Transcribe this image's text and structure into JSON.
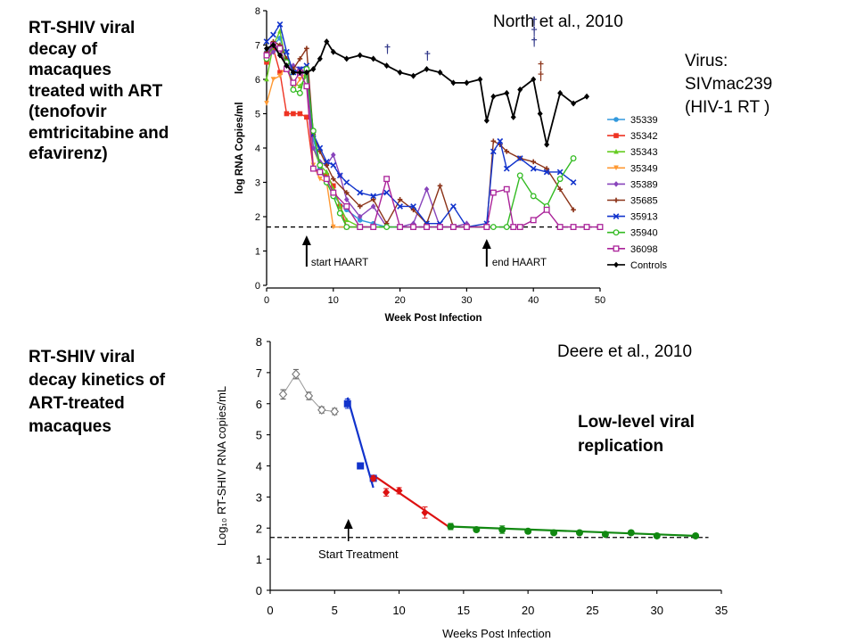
{
  "slide": {
    "caption1": [
      "RT-SHIV viral",
      "decay of",
      "macaques",
      "treated with ART",
      "(tenofovir",
      "emtricitabine and",
      "efavirenz)"
    ],
    "caption2": [
      "RT-SHIV viral",
      "decay kinetics of",
      "ART-treated",
      "macaques"
    ],
    "citation1": "North et al., 2010",
    "citation2": "Deere et al., 2010",
    "virus_note": [
      "Virus:",
      "SIVmac239",
      "(HIV-1 RT )"
    ],
    "low_level_note": [
      "Low-level viral",
      "replication"
    ]
  },
  "chart_data": [
    {
      "type": "line",
      "xlabel": "Week Post Infection",
      "ylabel": "log RNA Copies/ml",
      "xlim": [
        0,
        50
      ],
      "ylim": [
        0,
        8
      ],
      "xticks": [
        0,
        10,
        20,
        30,
        40,
        50
      ],
      "yticks": [
        0,
        1,
        2,
        3,
        4,
        5,
        6,
        7,
        8
      ],
      "limit_of_detection": 1.7,
      "annotations": [
        {
          "text": "start HAART",
          "x": 6
        },
        {
          "text": "end HAART",
          "x": 33
        }
      ],
      "death_marker": "†",
      "death_markers": [
        {
          "x": 18,
          "y": 6.9
        },
        {
          "x": 24,
          "y": 6.7
        },
        {
          "x": 40,
          "y": 7.7
        },
        {
          "x": 40,
          "y": 7.4
        },
        {
          "x": 40,
          "y": 7.1
        },
        {
          "x": 41,
          "y": 6.4
        },
        {
          "x": 41,
          "y": 6.1
        }
      ],
      "legend_position": "right",
      "series": [
        {
          "name": "35339",
          "color": "#3399dd",
          "marker": "circle",
          "x": [
            0,
            1,
            2,
            3,
            4,
            5,
            6,
            7,
            8,
            9,
            10,
            12,
            14,
            16,
            18,
            20,
            22,
            24,
            26,
            28
          ],
          "y": [
            6.8,
            7.0,
            7.2,
            6.6,
            6.2,
            6.3,
            6.1,
            4.3,
            3.4,
            3.0,
            2.6,
            2.2,
            1.9,
            1.8,
            1.7,
            1.7,
            1.7,
            1.7,
            1.7,
            1.7
          ]
        },
        {
          "name": "35342",
          "color": "#ee3322",
          "marker": "square",
          "x": [
            0,
            1,
            2,
            3,
            4,
            5,
            6,
            7,
            8,
            9,
            10,
            11,
            12,
            14,
            16
          ],
          "y": [
            6.5,
            6.9,
            6.2,
            5.0,
            5.0,
            5.0,
            4.9,
            3.4,
            3.3,
            3.2,
            2.9,
            2.3,
            1.7,
            1.7,
            1.7
          ]
        },
        {
          "name": "35343",
          "color": "#66cc22",
          "marker": "triangle",
          "x": [
            0,
            1,
            2,
            3,
            4,
            5,
            6,
            7,
            8,
            9,
            10,
            11,
            12,
            14,
            16,
            18
          ],
          "y": [
            6.0,
            7.0,
            7.4,
            6.4,
            5.9,
            5.8,
            6.1,
            4.0,
            3.5,
            3.3,
            2.8,
            2.3,
            1.9,
            1.7,
            1.7,
            1.7
          ]
        },
        {
          "name": "35349",
          "color": "#ff9933",
          "marker": "triangle-down",
          "x": [
            0,
            1,
            2,
            3,
            4,
            5,
            6,
            7,
            8,
            9,
            10,
            12,
            14
          ],
          "y": [
            5.3,
            6.0,
            6.1,
            6.4,
            5.7,
            6.0,
            6.2,
            3.5,
            3.1,
            3.0,
            1.7,
            1.7,
            1.7
          ]
        },
        {
          "name": "35389",
          "color": "#8844bb",
          "marker": "diamond",
          "x": [
            0,
            1,
            2,
            3,
            4,
            5,
            6,
            7,
            8,
            9,
            10,
            11,
            12,
            14,
            16,
            18,
            20,
            22,
            24,
            26,
            28,
            30
          ],
          "y": [
            6.6,
            6.8,
            6.9,
            6.3,
            6.4,
            6.3,
            6.2,
            4.0,
            3.6,
            3.5,
            3.8,
            3.2,
            2.5,
            2.0,
            2.3,
            1.7,
            1.7,
            1.8,
            2.8,
            1.7,
            1.7,
            1.8
          ]
        },
        {
          "name": "35685",
          "color": "#8b3318",
          "marker": "plus",
          "x": [
            0,
            1,
            2,
            3,
            4,
            5,
            6,
            7,
            8,
            9,
            10,
            12,
            14,
            16,
            18,
            20,
            22,
            24,
            26,
            28,
            30,
            33,
            34,
            35,
            36,
            38,
            40,
            42,
            44,
            46
          ],
          "y": [
            6.8,
            7.1,
            7.0,
            6.6,
            6.3,
            6.6,
            6.9,
            4.4,
            3.9,
            3.5,
            3.1,
            2.7,
            2.3,
            2.5,
            1.8,
            2.5,
            2.2,
            1.8,
            2.9,
            1.7,
            1.7,
            1.7,
            4.2,
            4.1,
            3.9,
            3.7,
            3.6,
            3.4,
            2.8,
            2.2
          ]
        },
        {
          "name": "35913",
          "color": "#1133cc",
          "marker": "x",
          "x": [
            0,
            1,
            2,
            3,
            4,
            5,
            6,
            7,
            8,
            9,
            10,
            11,
            12,
            14,
            16,
            18,
            20,
            22,
            24,
            26,
            28,
            30,
            33,
            34,
            35,
            36,
            38,
            40,
            42,
            44,
            46
          ],
          "y": [
            7.1,
            7.3,
            7.6,
            6.8,
            6.2,
            6.3,
            6.4,
            4.4,
            4.0,
            3.6,
            3.5,
            3.2,
            3.0,
            2.7,
            2.6,
            2.7,
            2.3,
            2.3,
            1.8,
            1.8,
            2.3,
            1.7,
            1.8,
            3.9,
            4.2,
            3.4,
            3.7,
            3.4,
            3.3,
            3.3,
            3.0
          ]
        },
        {
          "name": "35940",
          "color": "#33bb22",
          "marker": "circle-open",
          "x": [
            0,
            1,
            2,
            3,
            4,
            5,
            6,
            7,
            8,
            9,
            10,
            11,
            12,
            14,
            16,
            18,
            20,
            22,
            24,
            26,
            28,
            30,
            33,
            34,
            36,
            38,
            40,
            42,
            44,
            46
          ],
          "y": [
            6.6,
            7.0,
            6.8,
            6.5,
            5.7,
            5.6,
            6.3,
            4.5,
            3.5,
            3.0,
            2.6,
            2.1,
            1.7,
            1.7,
            1.7,
            1.7,
            1.7,
            1.7,
            1.7,
            1.7,
            1.7,
            1.7,
            1.7,
            1.7,
            1.7,
            3.2,
            2.6,
            2.3,
            3.1,
            3.7
          ]
        },
        {
          "name": "36098",
          "color": "#aa2299",
          "marker": "square-open",
          "x": [
            0,
            1,
            2,
            3,
            4,
            5,
            6,
            7,
            8,
            9,
            10,
            12,
            14,
            16,
            18,
            20,
            22,
            24,
            26,
            28,
            30,
            33,
            34,
            36,
            37,
            38,
            40,
            42,
            44,
            46,
            48,
            50
          ],
          "y": [
            6.7,
            7.0,
            6.9,
            6.3,
            5.9,
            6.2,
            5.8,
            3.4,
            3.3,
            3.1,
            2.7,
            2.3,
            1.7,
            1.7,
            3.1,
            1.7,
            1.7,
            1.7,
            1.7,
            1.7,
            1.7,
            1.7,
            2.7,
            2.8,
            1.7,
            1.7,
            1.9,
            2.2,
            1.7,
            1.7,
            1.7,
            1.7
          ]
        },
        {
          "name": "Controls",
          "color": "#000000",
          "marker": "diamond",
          "x": [
            0,
            1,
            2,
            3,
            4,
            5,
            6,
            7,
            8,
            9,
            10,
            12,
            14,
            16,
            18,
            20,
            22,
            24,
            26,
            28,
            30,
            32,
            33,
            34,
            36,
            37,
            38,
            40,
            41,
            42,
            44,
            46,
            48
          ],
          "y": [
            6.9,
            7.0,
            6.7,
            6.4,
            6.2,
            6.2,
            6.2,
            6.3,
            6.6,
            7.1,
            6.8,
            6.6,
            6.7,
            6.6,
            6.4,
            6.2,
            6.1,
            6.3,
            6.2,
            5.9,
            5.9,
            6.0,
            4.8,
            5.5,
            5.6,
            4.9,
            5.7,
            6.0,
            5.0,
            4.1,
            5.6,
            5.3,
            5.5
          ]
        }
      ]
    },
    {
      "type": "line",
      "xlabel": "Weeks Post Infection",
      "ylabel": "Log₁₀ RT-SHIV RNA copies/mL",
      "xlim": [
        0,
        35
      ],
      "ylim": [
        0,
        8
      ],
      "xticks": [
        0,
        5,
        10,
        15,
        20,
        25,
        30,
        35
      ],
      "yticks": [
        0,
        1,
        2,
        3,
        4,
        5,
        6,
        7,
        8
      ],
      "limit_of_detection": 1.7,
      "annotations": [
        {
          "text": "Start Treatment",
          "x": 6
        }
      ],
      "series": [
        {
          "phase": "pre-treatment",
          "color": "#777777",
          "marker": "diamond-open",
          "x": [
            1,
            2,
            3,
            4,
            5
          ],
          "y": [
            6.3,
            6.95,
            6.25,
            5.8,
            5.75
          ],
          "err": [
            0.15,
            0.15,
            0.12,
            0.1,
            0.1
          ]
        },
        {
          "phase": "first-phase decay",
          "color": "#1133cc",
          "marker": "square",
          "x": [
            6,
            7,
            8
          ],
          "y": [
            6.0,
            4.0,
            3.6
          ],
          "err": [
            0.15,
            0.1,
            0.08
          ]
        },
        {
          "phase": "second-phase decay",
          "color": "#dd1111",
          "marker": "diamond",
          "x": [
            8,
            9,
            10,
            12
          ],
          "y": [
            3.6,
            3.15,
            3.2,
            2.5
          ],
          "err": [
            0.08,
            0.12,
            0.1,
            0.18
          ]
        },
        {
          "phase": "third-phase plateau",
          "color": "#118811",
          "marker": "circle",
          "x": [
            14,
            16,
            18,
            20,
            22,
            24,
            26,
            28,
            30,
            33
          ],
          "y": [
            2.05,
            1.95,
            1.95,
            1.9,
            1.85,
            1.85,
            1.8,
            1.85,
            1.75,
            1.75
          ],
          "err": [
            0.1,
            0.06,
            0.12,
            0.06,
            0.06,
            0.05,
            0.05,
            0.06,
            0.04,
            0.04
          ]
        }
      ],
      "fit_lines": [
        {
          "color": "#1133cc",
          "x": [
            6,
            8
          ],
          "y": [
            6.2,
            3.3
          ]
        },
        {
          "color": "#dd1111",
          "x": [
            8,
            14
          ],
          "y": [
            3.7,
            2.0
          ]
        },
        {
          "color": "#118811",
          "x": [
            14,
            33
          ],
          "y": [
            2.05,
            1.75
          ]
        }
      ]
    }
  ]
}
